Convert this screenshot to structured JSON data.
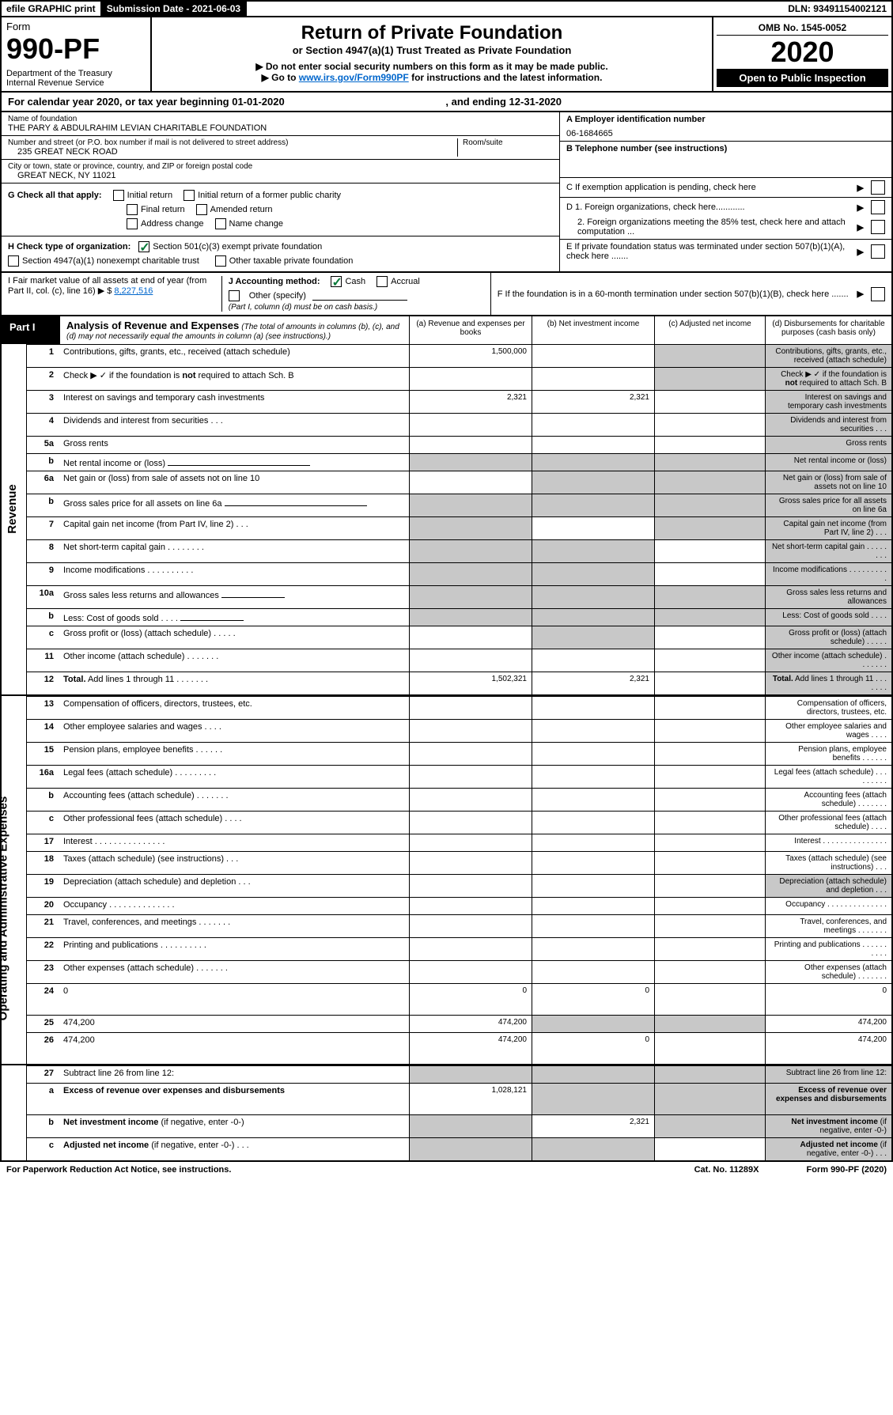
{
  "colors": {
    "black": "#000000",
    "white": "#ffffff",
    "link": "#0066cc",
    "check_green": "#0a7a3a",
    "gray_cell": "#c8c8c8"
  },
  "header_bar": {
    "efile": "efile GRAPHIC print",
    "sub_label": "Submission Date - 2021-06-03",
    "dln": "DLN: 93491154002121"
  },
  "title_block": {
    "form_word": "Form",
    "form_number": "990-PF",
    "dept": "Department of the Treasury",
    "irs": "Internal Revenue Service",
    "main_title": "Return of Private Foundation",
    "sub_title": "or Section 4947(a)(1) Trust Treated as Private Foundation",
    "instr1": "▶ Do not enter social security numbers on this form as it may be made public.",
    "instr2_pre": "▶ Go to ",
    "instr2_link": "www.irs.gov/Form990PF",
    "instr2_post": " for instructions and the latest information.",
    "omb": "OMB No. 1545-0052",
    "year": "2020",
    "open_pub": "Open to Public Inspection"
  },
  "cal": {
    "text": "For calendar year 2020, or tax year beginning 01-01-2020",
    "ending": ", and ending 12-31-2020"
  },
  "ident": {
    "name_label": "Name of foundation",
    "name": "THE PARY & ABDULRAHIM LEVIAN CHARITABLE FOUNDATION",
    "addr_label": "Number and street (or P.O. box number if mail is not delivered to street address)",
    "addr": "235 GREAT NECK ROAD",
    "room_label": "Room/suite",
    "city_label": "City or town, state or province, country, and ZIP or foreign postal code",
    "city": "GREAT NECK, NY  11021",
    "a_label": "A Employer identification number",
    "a_val": "06-1684665",
    "b_label": "B Telephone number (see instructions)",
    "c_label": "C If exemption application is pending, check here",
    "d1": "D 1. Foreign organizations, check here............",
    "d2": "2. Foreign organizations meeting the 85% test, check here and attach computation ...",
    "e": "E  If private foundation status was terminated under section 507(b)(1)(A), check here .......",
    "f": "F  If the foundation is in a 60-month termination under section 507(b)(1)(B), check here .......",
    "g_label": "G Check all that apply:",
    "g_opts": [
      "Initial return",
      "Initial return of a former public charity",
      "Final return",
      "Amended return",
      "Address change",
      "Name change"
    ],
    "h_label": "H Check type of organization:",
    "h_opts": [
      "Section 501(c)(3) exempt private foundation",
      "Section 4947(a)(1) nonexempt charitable trust",
      "Other taxable private foundation"
    ],
    "h_checked_index": 0,
    "i_label": "I Fair market value of all assets at end of year (from Part II, col. (c), line 16) ▶ $",
    "i_val": "8,227,516",
    "j_label": "J Accounting method:",
    "j_cash": "Cash",
    "j_accrual": "Accrual",
    "j_other": "Other (specify)",
    "j_note": "(Part I, column (d) must be on cash basis.)",
    "j_checked": "cash"
  },
  "part1": {
    "label": "Part I",
    "title": "Analysis of Revenue and Expenses",
    "title_note": "(The total of amounts in columns (b), (c), and (d) may not necessarily equal the amounts in column (a) (see instructions).)",
    "col_a": "(a)   Revenue and expenses per books",
    "col_b": "(b)  Net investment income",
    "col_c": "(c)  Adjusted net income",
    "col_d": "(d)  Disbursements for charitable purposes (cash basis only)",
    "vside_rev": "Revenue",
    "vside_exp": "Operating and Administrative Expenses",
    "rows": [
      {
        "n": "1",
        "d": "Contributions, gifts, grants, etc., received (attach schedule)",
        "a": "1,500,000",
        "b": "",
        "c": "gray",
        "d_gray": true
      },
      {
        "n": "2",
        "d": "Check ▶ ✓ if the foundation is <b>not</b> required to attach Sch. B",
        "has_check": true,
        "a": "",
        "b": "",
        "c": "gray",
        "d_gray": true,
        "wide": true
      },
      {
        "n": "3",
        "d": "Interest on savings and temporary cash investments",
        "a": "2,321",
        "b": "2,321",
        "c": "",
        "d_gray": true
      },
      {
        "n": "4",
        "d": "Dividends and interest from securities    .   .   .",
        "a": "",
        "b": "",
        "c": "",
        "d_gray": true
      },
      {
        "n": "5a",
        "d": "Gross rents",
        "a": "",
        "b": "",
        "c": "",
        "d_gray": true
      },
      {
        "n": "b",
        "d": "Net rental income or (loss)",
        "input": true,
        "a": "gray",
        "b": "gray",
        "c": "gray",
        "d_gray": true
      },
      {
        "n": "6a",
        "d": "Net gain or (loss) from sale of assets not on line 10",
        "a": "",
        "b": "gray",
        "c": "gray",
        "d_gray": true
      },
      {
        "n": "b",
        "d": "Gross sales price for all assets on line 6a",
        "input": true,
        "a": "gray",
        "b": "gray",
        "c": "gray",
        "d_gray": true
      },
      {
        "n": "7",
        "d": "Capital gain net income (from Part IV, line 2)    .   .   .",
        "a": "gray",
        "b": "",
        "c": "gray",
        "d_gray": true
      },
      {
        "n": "8",
        "d": "Net short-term capital gain    .   .   .   .   .   .   .   .",
        "a": "gray",
        "b": "gray",
        "c": "",
        "d_gray": true
      },
      {
        "n": "9",
        "d": "Income modifications   .   .   .   .   .   .   .   .   .   .",
        "a": "gray",
        "b": "gray",
        "c": "",
        "d_gray": true
      },
      {
        "n": "10a",
        "d": "Gross sales less returns and allowances",
        "input_short": true,
        "a": "gray",
        "b": "gray",
        "c": "gray",
        "d_gray": true
      },
      {
        "n": "b",
        "d": "Less: Cost of goods sold      .   .   .   .",
        "input_short": true,
        "a": "gray",
        "b": "gray",
        "c": "gray",
        "d_gray": true
      },
      {
        "n": "c",
        "d": "Gross profit or (loss) (attach schedule)    .   .   .   .   .",
        "a": "",
        "b": "gray",
        "c": "",
        "d_gray": true
      },
      {
        "n": "11",
        "d": "Other income (attach schedule)     .   .   .   .   .   .   .",
        "a": "",
        "b": "",
        "c": "",
        "d_gray": true
      },
      {
        "n": "12",
        "d": "<b>Total.</b> Add lines 1 through 11    .   .   .   .   .   .   .",
        "a": "1,502,321",
        "b": "2,321",
        "c": "",
        "d_gray": true
      }
    ],
    "exp_rows": [
      {
        "n": "13",
        "d": "Compensation of officers, directors, trustees, etc."
      },
      {
        "n": "14",
        "d": "Other employee salaries and wages     .   .   .   ."
      },
      {
        "n": "15",
        "d": "Pension plans, employee benefits    .   .   .   .   .   ."
      },
      {
        "n": "16a",
        "d": "Legal fees (attach schedule)  .   .   .   .   .   .   .   .   ."
      },
      {
        "n": "b",
        "d": "Accounting fees (attach schedule)   .   .   .   .   .   .   ."
      },
      {
        "n": "c",
        "d": "Other professional fees (attach schedule)     .   .   .   ."
      },
      {
        "n": "17",
        "d": "Interest   .   .   .   .   .   .   .   .   .   .   .   .   .   .   ."
      },
      {
        "n": "18",
        "d": "Taxes (attach schedule) (see instructions)     .   .   ."
      },
      {
        "n": "19",
        "d": "Depreciation (attach schedule) and depletion    .   .   .",
        "d_gray": true
      },
      {
        "n": "20",
        "d": "Occupancy  .   .   .   .   .   .   .   .   .   .   .   .   .   ."
      },
      {
        "n": "21",
        "d": "Travel, conferences, and meetings   .   .   .   .   .   .   ."
      },
      {
        "n": "22",
        "d": "Printing and publications   .   .   .   .   .   .   .   .   .   ."
      },
      {
        "n": "23",
        "d": "Other expenses (attach schedule)   .   .   .   .   .   .   ."
      },
      {
        "n": "24",
        "d": "0",
        "a": "0",
        "b": "0",
        "tall": true
      },
      {
        "n": "25",
        "d": "474,200",
        "a": "474,200",
        "b_gray": true,
        "c_gray": true
      },
      {
        "n": "26",
        "d": "474,200",
        "a": "474,200",
        "b": "0",
        "tall": true
      }
    ],
    "line27": {
      "n": "27",
      "d": "Subtract line 26 from line 12:"
    },
    "line27a": {
      "n": "a",
      "d": "<b>Excess of revenue over expenses and disbursements</b>",
      "a": "1,028,121"
    },
    "line27b": {
      "n": "b",
      "d": "<b>Net investment income</b> (if negative, enter -0-)",
      "b": "2,321"
    },
    "line27c": {
      "n": "c",
      "d": "<b>Adjusted net income</b> (if negative, enter -0-)   .   .   ."
    }
  },
  "footer": {
    "left": "For Paperwork Reduction Act Notice, see instructions.",
    "mid": "Cat. No. 11289X",
    "right": "Form 990-PF (2020)"
  }
}
